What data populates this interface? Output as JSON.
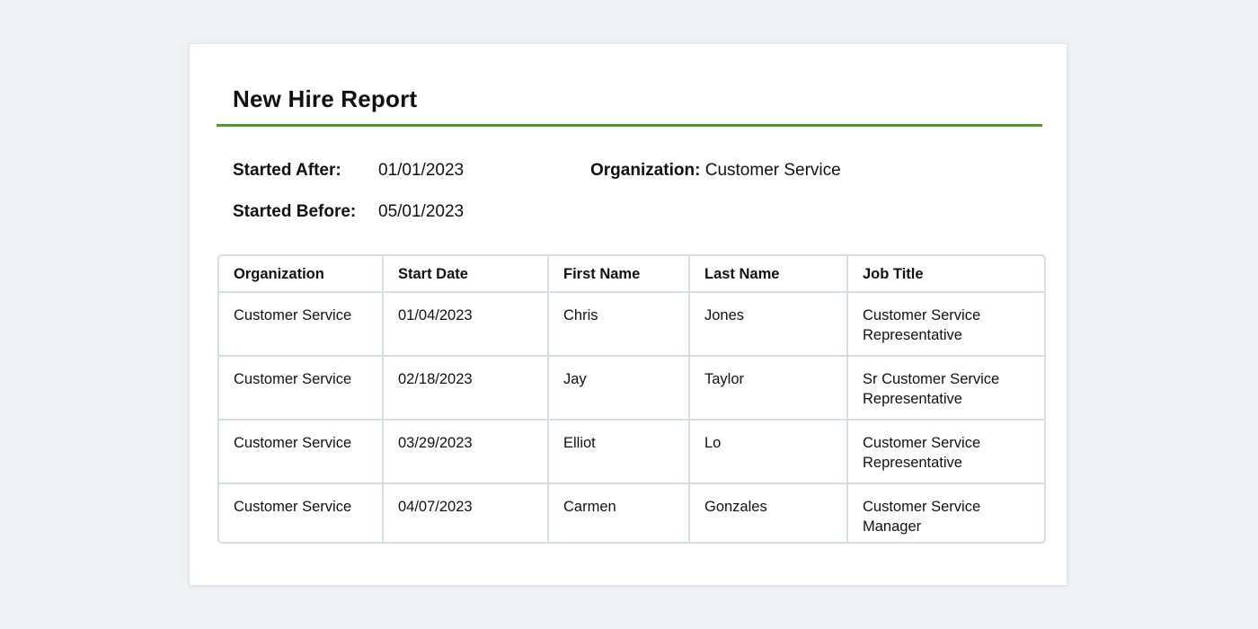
{
  "report": {
    "title": "New Hire Report",
    "accent_color": "#4a9a2c",
    "filters": {
      "started_after_label": "Started After:",
      "started_after_value": "01/01/2023",
      "started_before_label": "Started Before:",
      "started_before_value": "05/01/2023",
      "organization_label": "Organization:",
      "organization_value": "Customer Service"
    },
    "table": {
      "columns": [
        "Organization",
        "Start Date",
        "First Name",
        "Last Name",
        "Job Title"
      ],
      "rows": [
        [
          "Customer Service",
          "01/04/2023",
          "Chris",
          "Jones",
          "Customer Service Representative"
        ],
        [
          "Customer Service",
          "02/18/2023",
          "Jay",
          "Taylor",
          "Sr Customer Service Representative"
        ],
        [
          "Customer Service",
          "03/29/2023",
          "Elliot",
          "Lo",
          "Customer Service Representative"
        ],
        [
          "Customer Service",
          "04/07/2023",
          "Carmen",
          "Gonzales",
          "Customer Service Manager"
        ]
      ]
    }
  }
}
